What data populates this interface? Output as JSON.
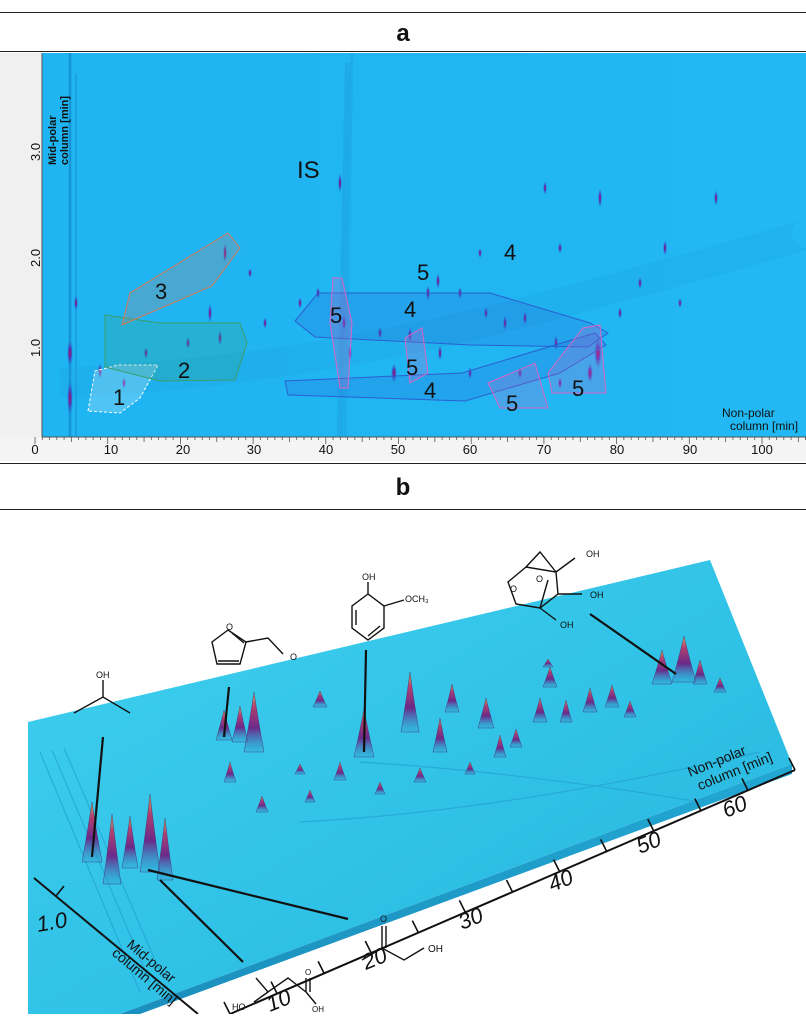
{
  "figure": {
    "panel_a_label": "a",
    "panel_b_label": "b"
  },
  "panel_a": {
    "ylabel_line1": "Mid-polar",
    "ylabel_line2": "column [min]",
    "xlabel_line1": "Non-polar",
    "xlabel_line2": "column [min]",
    "y_ticks": [
      "1.0",
      "2.0",
      "3.0"
    ],
    "x_ticks": [
      "0",
      "10",
      "20",
      "30",
      "40",
      "50",
      "60",
      "70",
      "80",
      "90",
      "100"
    ],
    "is_label": "IS",
    "region_labels": [
      "1",
      "2",
      "3",
      "4",
      "4",
      "4",
      "5",
      "5",
      "5",
      "5",
      "5"
    ],
    "colors": {
      "background": "#1ab0f0",
      "region1": "#ffffff",
      "region2": "#3aa06a",
      "region3": "#d47a5a",
      "region4": "#2b5fd0",
      "region5": "#d866c8"
    }
  },
  "panel_b": {
    "ylabel_line1": "Mid-polar",
    "ylabel_line2": "column [min]",
    "xlabel_line1": "Non-polar",
    "xlabel_line2": "column [min]",
    "y_tick": "1.0",
    "x_ticks": [
      "10",
      "20",
      "30",
      "40",
      "50",
      "60"
    ],
    "structures": {
      "isopropanol_oh": "OH",
      "guaiacol_oh": "OH",
      "guaiacol_och3": "OCH₃",
      "levoglucosan_oh": [
        "OH",
        "OH",
        "OH"
      ],
      "hydroxyacetone_oh": "OH",
      "lactic_ho": "HO",
      "lactic_oh": "OH"
    },
    "colors": {
      "surface": "#35c6e8",
      "peak_top": "#c8a040",
      "peak_mid": "#8a2c7a"
    }
  }
}
